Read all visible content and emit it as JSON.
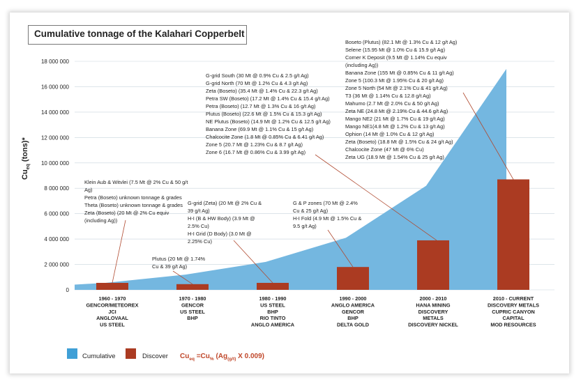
{
  "chart_data": {
    "type": "bar",
    "title": "Cumulative tonnage of the Kalahari Copperbelt",
    "ylabel": "Cu",
    "ylabel_sub": "eq",
    "ylabel_suffix": " (tons)*",
    "ylim": [
      0,
      18000000
    ],
    "yticks": [
      0,
      2000000,
      4000000,
      6000000,
      8000000,
      10000000,
      12000000,
      14000000,
      16000000,
      18000000
    ],
    "ytick_labels": [
      "0",
      "2 000 000",
      "4 000 000",
      "6 000 000",
      "8 000 000",
      "10 000 000",
      "12 000 000",
      "14 000 000",
      "16 000 000",
      "18 000 000"
    ],
    "categories": [
      [
        "1960 - 1970",
        "GENCOR/METEOREX",
        "JCI",
        "ANGLOVAAL",
        "US STEEL"
      ],
      [
        "1970 - 1980",
        "GENCOR",
        "US STEEL",
        "BHP"
      ],
      [
        "1980 - 1990",
        "US STEEL",
        "BHP",
        "RIO TINTO",
        "ANGLO AMERICA"
      ],
      [
        "1990 - 2000",
        "ANGLO AMERICA",
        "GENCOR",
        "BHP",
        "DELTA GOLD"
      ],
      [
        "2000 - 2010",
        "HANA MINING",
        "DISCOVERY",
        "METALS",
        "DISCOVERY NICKEL"
      ],
      [
        "2010 - CURRENT",
        "DISCOVERY METALS",
        "CUPRIC CANYON",
        "CAPITAL",
        "MOD RESOURCES"
      ]
    ],
    "series": [
      {
        "name": "Cumulative",
        "type": "area",
        "color": "#74b7e0",
        "values": [
          550000,
          1200000,
          2200000,
          4100000,
          8200000,
          17400000
        ]
      },
      {
        "name": "Discover",
        "type": "bar",
        "color": "#ab3b22",
        "values": [
          550000,
          450000,
          550000,
          1800000,
          3900000,
          8700000
        ]
      }
    ],
    "grid": true,
    "legend_position": "bottom-left",
    "annotations": [
      {
        "lines": [
          "Klein Aub & Witvlei (7.5 Mt @ 2% Cu & 50 g/t",
          "Ag)",
          "Petra (Boseto) unknown tonnage & grades",
          "Theta (Boseto) unknown tonnage & grades",
          "Zeta (Boseto) (20 Mt @ 2% Cu equiv",
          "(including Ag))"
        ]
      },
      {
        "lines": [
          "Plutus (20 Mt @ 1.74%",
          "Cu & 39 g/t Ag)"
        ]
      },
      {
        "lines": [
          "G-grid (Zeta) (20 Mt @ 2% Cu &",
          "39 g/t Ag)",
          "H-I (B & HW Body) (3.9 Mt @",
          "2.5% Cu)",
          "H-I Grid (D Body) (3.0 Mt @",
          "2.25% Cu)"
        ]
      },
      {
        "lines": [
          "G & P zones (70 Mt @ 2.4%",
          "Cu & 25 g/t Ag)",
          "H-I Fold (4.9 Mt @ 1.5% Cu &",
          "9.5 g/t Ag)"
        ]
      },
      {
        "lines": [
          "G-grid South (30 Mt @ 0.9% Cu & 2.5 g/t Ag)",
          "G-grid North (70 Mt @ 1.2% Cu & 4.3 g/t Ag)",
          "Zeta (Boseto) (35.4 Mt @ 1.4% Cu & 22.3 g/t Ag)",
          "Petra SW (Boseto) (17.2 Mt @ 1.4% Cu & 15.4 g/t Ag)",
          "Petra (Boseto) (12.7 Mt @ 1.3% Cu & 16 g/t Ag)",
          "Plutus (Boseto) (22.6 Mt @ 1.5% Cu & 15.3 g/t Ag)",
          "NE Plutus (Boseto) (14.9 Mt @ 1.2% Cu & 12.5 g/t Ag)",
          "Banana Zone (69.9 Mt @ 1.1% Cu & 15 g/t Ag)",
          "Chalcocite Zone (1.8 Mt @ 0.85% Cu & 6.41 g/t Ag)",
          "Zone 5 (20.7 Mt @ 1.23% Cu & 8.7 g/t Ag)",
          "Zone 6 (16.7 Mt @ 0.86% Cu & 3.99 g/t Ag)"
        ]
      },
      {
        "lines": [
          "Boseto (Plutus) (82.1 Mt @ 1.3% Cu & 12 g/t Ag)",
          "Selene (15.95 Mt @ 1.0% Cu & 15.9 g/t Ag)",
          "Corner K Deposit (9.5 Mt @ 1.14% Cu equiv",
          "(including Ag))",
          "Banana Zone (155 Mt @ 0.85% Cu & 11 g/t Ag)",
          "Zone 5 (100.3 Mt @ 1.95% Cu & 20 g/t Ag)",
          "Zone 5 North (54 Mt @ 2.1% Cu & 41 g/t Ag)",
          "T3 (36 Mt @ 1.14% Cu & 12.8 g/t Ag)",
          "Mahumo (2.7 Mt @ 2.0% Cu & 50 g/t Ag)",
          "Zeta NE (24.8 Mt @ 2.19% Cu & 44.6 g/t Ag)",
          "Mango NE2 (21 Mt @ 1.7% Cu & 19 g/t Ag)",
          "Mango NE1(4.8 Mt @ 1.2% Cu & 13 g/t Ag)",
          "Ophion (14 Mt @ 1.0% Cu & 12 g/t Ag)",
          "Zeta (Boseto) (18.8 Mt @ 1.5% Cu & 24 g/t Ag)",
          "Chalcocite Zone (47 Mt @ 6% Cu)",
          "Zeta UG (18.9 Mt @ 1.54% Cu & 25 g/t Ag)"
        ]
      }
    ],
    "formula": {
      "lhs": "Cu",
      "lhs_sub": "eq",
      "eq": " =Cu",
      "cu_sub": "%",
      "rest": " (Ag",
      "ag_sub": "(g/t)",
      "tail": " X 0.009)"
    }
  }
}
